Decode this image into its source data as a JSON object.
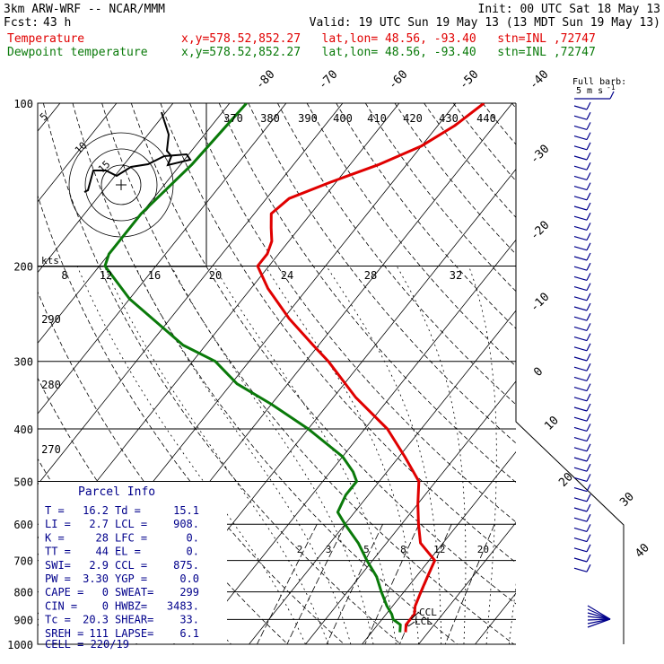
{
  "header": {
    "model": "3km ARW-WRF -- NCAR/MMM",
    "init": "Init: 00 UTC Sat 18 May 13",
    "fcst_label": "Fcst:",
    "fcst_value": "43 h",
    "valid": "Valid: 19 UTC Sun 19 May 13 (13 MDT Sun 19 May 13)",
    "temp_label": "Temperature",
    "dew_label": "Dewpoint temperature",
    "loc_temp": "x,y=578.52,852.27   lat,lon= 48.56, -93.40   stn=INL ,72747",
    "loc_dew": "x,y=578.52,852.27   lat,lon= 48.56, -93.40   stn=INL ,72747"
  },
  "barb_legend": {
    "line1": "Full barb:",
    "line2": "5 m s",
    "exp": "-1"
  },
  "hodograph": {
    "units": "kts",
    "ring_labels": [
      "5",
      "10",
      "15"
    ]
  },
  "parcel_info": {
    "title": "Parcel Info",
    "rows": [
      {
        "k1": "T  =",
        "v1": "16.2",
        "k2": "Td =",
        "v2": "15.1"
      },
      {
        "k1": "LI =",
        "v1": "2.7",
        "k2": "LCL =",
        "v2": "908."
      },
      {
        "k1": "K  =",
        "v1": "28",
        "k2": "LFC =",
        "v2": "0."
      },
      {
        "k1": "TT =",
        "v1": "44",
        "k2": "EL  =",
        "v2": "0."
      },
      {
        "k1": "SWI=",
        "v1": "2.9",
        "k2": "CCL =",
        "v2": "875."
      },
      {
        "k1": "PW =",
        "v1": "3.30",
        "k2": "YGP =",
        "v2": "0.0"
      },
      {
        "k1": "CAPE =",
        "v1": "0",
        "k2": "SWEAT=",
        "v2": "299"
      },
      {
        "k1": "CIN =",
        "v1": "0",
        "k2": "HWBZ=",
        "v2": "3483."
      },
      {
        "k1": "Tc =",
        "v1": "20.3",
        "k2": "SHEAR=",
        "v2": "33."
      },
      {
        "k1": "SREH =",
        "v1": "111",
        "k2": "LAPSE=",
        "v2": "6.1"
      }
    ],
    "cell": "CELL = 220/19"
  },
  "level_markers": [
    "CCL",
    "LCL"
  ],
  "chart_data": {
    "type": "line",
    "title": "",
    "pressure_levels": [
      100,
      200,
      300,
      400,
      500,
      600,
      700,
      800,
      900,
      1000
    ],
    "isotherm_labels": [
      "-80",
      "-70",
      "-60",
      "-50",
      "-40",
      "-30",
      "-20",
      "-10",
      "0",
      "10",
      "20",
      "30",
      "40"
    ],
    "theta_labels": [
      "370",
      "380",
      "390",
      "400",
      "410",
      "420",
      "430",
      "440"
    ],
    "theta_low_labels": [
      "290",
      "280",
      "270"
    ],
    "wind_scale_labels": [
      "8",
      "12",
      "16",
      "20",
      "24",
      "28",
      "32"
    ],
    "mixing_ratio_labels": [
      "2",
      "3",
      "5",
      "8",
      "12",
      "20"
    ],
    "series": [
      {
        "name": "Temperature",
        "color": "#e00000",
        "p": [
          100,
          110,
          120,
          130,
          140,
          150,
          160,
          170,
          180,
          190,
          200,
          220,
          250,
          280,
          300,
          350,
          400,
          450,
          500,
          550,
          600,
          650,
          700,
          750,
          800,
          850,
          880,
          900,
          920,
          950
        ],
        "T": [
          -45,
          -47,
          -50,
          -55,
          -61,
          -66,
          -67,
          -65,
          -63,
          -62,
          -62,
          -57,
          -49,
          -41,
          -36,
          -26,
          -16,
          -9,
          -3,
          0,
          3,
          6,
          11,
          12,
          13,
          14,
          15,
          15,
          15,
          16
        ]
      },
      {
        "name": "Dewpoint temperature",
        "color": "#0a7a0a",
        "p": [
          100,
          130,
          160,
          190,
          200,
          230,
          280,
          300,
          330,
          360,
          400,
          450,
          480,
          500,
          530,
          570,
          600,
          650,
          700,
          750,
          800,
          850,
          880,
          900,
          920,
          950
        ],
        "T": [
          -87,
          -88,
          -90,
          -90,
          -89,
          -80,
          -64,
          -56,
          -49,
          -40,
          -30,
          -20,
          -16,
          -14,
          -14,
          -13,
          -10,
          -5,
          -1,
          3,
          6,
          9,
          11,
          12,
          14,
          15
        ]
      }
    ]
  }
}
